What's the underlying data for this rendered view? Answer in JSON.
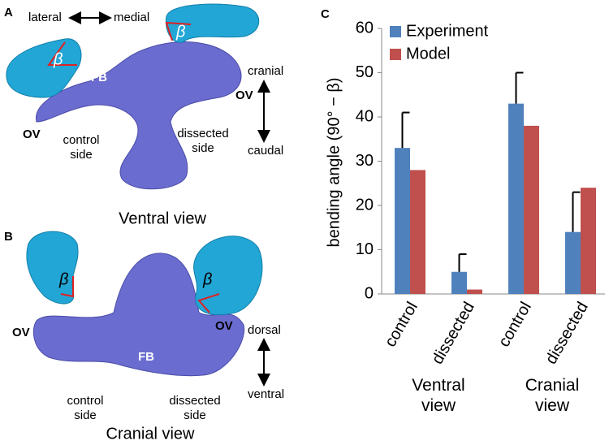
{
  "panels": {
    "a": {
      "letter": "A",
      "lateral": "lateral",
      "medial": "medial",
      "beta_left": "β",
      "beta_right": "β",
      "fb": "FB",
      "ov_right": "OV",
      "ov_left": "OV",
      "cranial": "cranial",
      "caudal": "caudal",
      "control_side": [
        "control",
        "side"
      ],
      "dissected_side": [
        "dissected",
        "side"
      ],
      "caption": "Ventral view"
    },
    "b": {
      "letter": "B",
      "beta_left": "β",
      "beta_right": "β",
      "fb": "FB",
      "ov_left": "OV",
      "ov_right": "OV",
      "dorsal": "dorsal",
      "ventral": "ventral",
      "control_side": [
        "control",
        "side"
      ],
      "dissected_side": [
        "dissected",
        "side"
      ],
      "caption": "Cranial view"
    },
    "c": {
      "letter": "C"
    }
  },
  "chart_data": {
    "type": "bar",
    "ylabel": "bending angle (90° − β)",
    "categories": [
      "control",
      "dissected",
      "control",
      "dissected"
    ],
    "groups": [
      "Ventral view",
      "Cranial view"
    ],
    "series": [
      {
        "name": "Experiment",
        "color": "#4f81bd",
        "values": [
          33,
          5,
          43,
          14
        ],
        "errors": [
          8,
          4,
          7,
          9
        ]
      },
      {
        "name": "Model",
        "color": "#c0504d",
        "values": [
          28,
          1,
          38,
          24
        ]
      }
    ],
    "ylim": [
      0,
      60
    ],
    "yticks": [
      0,
      10,
      20,
      30,
      40,
      50,
      60
    ],
    "grid": false,
    "legend": "top-left"
  }
}
